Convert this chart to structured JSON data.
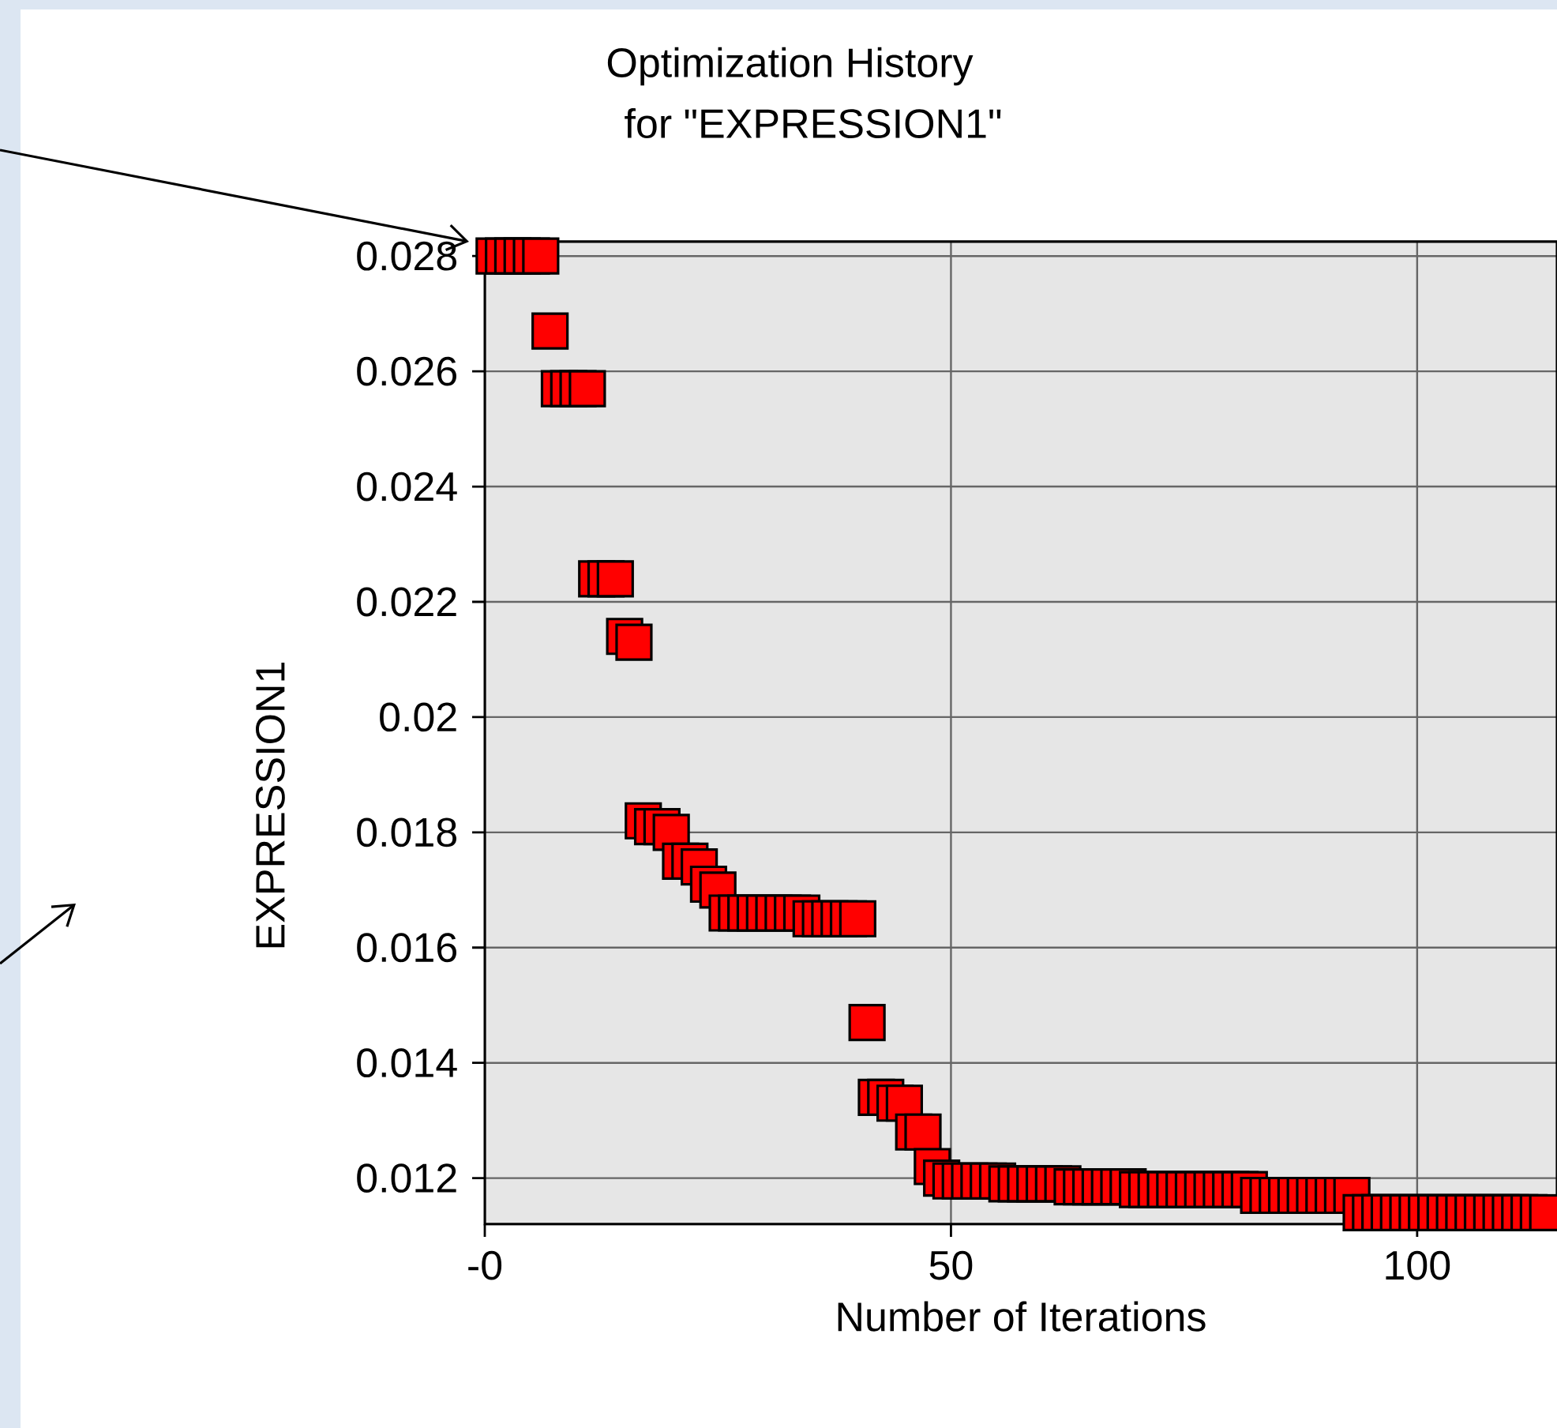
{
  "chart_data": {
    "type": "scatter",
    "title": "Optimization History",
    "subtitle": "for \"EXPRESSION1\"",
    "xlabel": "Number of Iterations",
    "ylabel": "EXPRESSION1",
    "x": [
      1,
      2,
      3,
      4,
      5,
      6,
      7,
      8,
      9,
      10,
      11,
      12,
      13,
      14,
      15,
      16,
      17,
      18,
      19,
      20,
      21,
      22,
      23,
      24,
      25,
      26,
      27,
      28,
      29,
      30,
      31,
      32,
      33,
      34,
      35,
      36,
      37,
      38,
      39,
      40,
      41,
      42,
      43,
      44,
      45,
      46,
      47,
      48,
      49,
      50,
      51,
      52,
      53,
      54,
      55,
      56,
      57,
      58,
      59,
      60,
      61,
      62,
      63,
      64,
      65,
      66,
      67,
      68,
      69,
      70,
      71,
      72,
      73,
      74,
      75,
      76,
      77,
      78,
      79,
      80,
      81,
      82,
      83,
      84,
      85,
      86,
      87,
      88,
      89,
      90,
      91,
      92,
      93,
      94,
      95,
      96,
      97,
      98,
      99,
      100,
      101,
      102,
      103,
      104,
      105,
      106,
      107,
      108,
      109,
      110,
      111,
      112,
      113,
      114
    ],
    "series": [
      {
        "color": "#ff0000",
        "values": [
          0.028,
          0.028,
          0.028,
          0.028,
          0.028,
          0.028,
          0.0267,
          0.0257,
          0.0257,
          0.0257,
          0.0257,
          0.0224,
          0.0224,
          0.0224,
          0.0214,
          0.0213,
          0.0182,
          0.0181,
          0.0181,
          0.018,
          0.0175,
          0.0175,
          0.0174,
          0.0171,
          0.017,
          0.0166,
          0.0166,
          0.0166,
          0.0166,
          0.0166,
          0.0166,
          0.0166,
          0.0166,
          0.0166,
          0.0165,
          0.0165,
          0.0165,
          0.0165,
          0.0165,
          0.0165,
          0.0147,
          0.0134,
          0.0134,
          0.0133,
          0.0133,
          0.0128,
          0.0128,
          0.0122,
          0.012,
          0.01195,
          0.01195,
          0.01195,
          0.01195,
          0.01195,
          0.01195,
          0.0119,
          0.0119,
          0.0119,
          0.0119,
          0.0119,
          0.0119,
          0.0119,
          0.01185,
          0.01185,
          0.01185,
          0.01185,
          0.01185,
          0.01185,
          0.01185,
          0.0118,
          0.0118,
          0.0118,
          0.0118,
          0.0118,
          0.0118,
          0.0118,
          0.0118,
          0.0118,
          0.0118,
          0.0118,
          0.0118,
          0.0118,
          0.0117,
          0.0117,
          0.0117,
          0.0117,
          0.0117,
          0.0117,
          0.0117,
          0.0117,
          0.0117,
          0.0117,
          0.0117,
          0.0114,
          0.0114,
          0.0114,
          0.0114,
          0.0114,
          0.0114,
          0.0114,
          0.0114,
          0.0114,
          0.0114,
          0.0114,
          0.0114,
          0.0114,
          0.0114,
          0.0114,
          0.0114,
          0.0114,
          0.0114,
          0.0114,
          0.0114,
          0.0114
        ]
      }
    ],
    "xlim": [
      0,
      115
    ],
    "ylim": [
      0.0112,
      0.02825
    ],
    "xticks": [
      {
        "value": 0,
        "label": "-0"
      },
      50,
      100
    ],
    "yticks": [
      0.012,
      0.014,
      0.016,
      0.018,
      0.02,
      0.022,
      0.024,
      0.026,
      0.028
    ],
    "grid": true,
    "marker": "square"
  }
}
